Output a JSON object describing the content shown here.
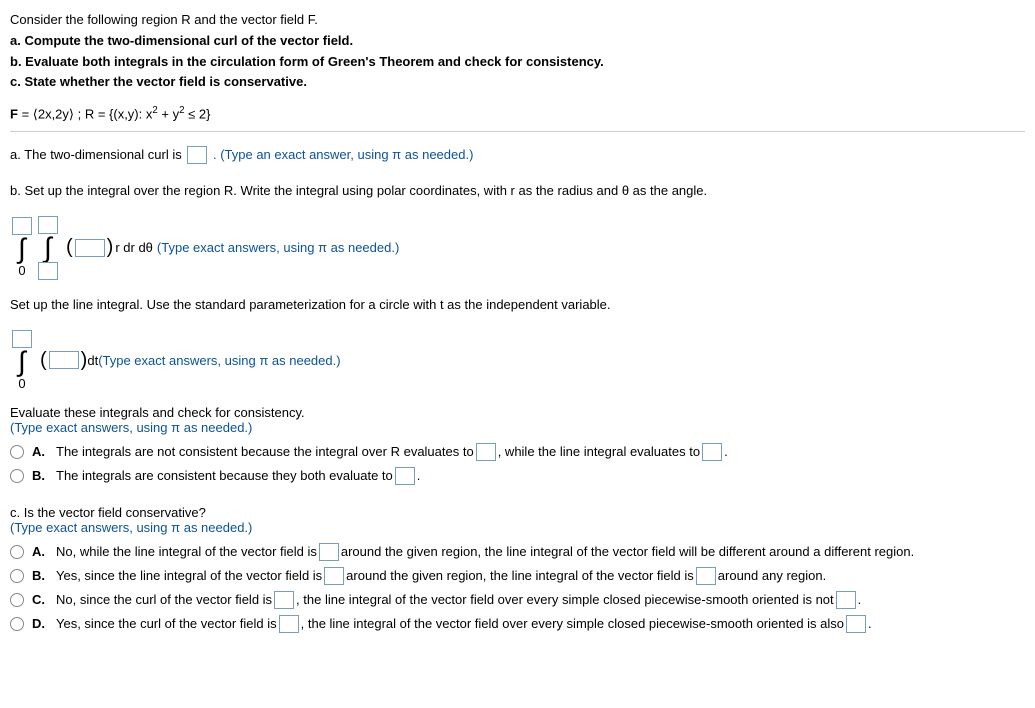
{
  "intro": "Consider the following region R and the vector field F.",
  "parts": {
    "a": "a. Compute the two-dimensional curl of the vector field.",
    "b": "b. Evaluate both integrals in the circulation form of Green's Theorem and check for consistency.",
    "c": "c. State whether the vector field is conservative."
  },
  "equation_html": "<b>F</b> = ⟨2x,2y⟩ ; R = {(x,y): x<sup>2</sup> + y<sup>2</sup> ≤ 2}",
  "partA_pre": "a. The two-dimensional curl is ",
  "partA_post": ". (Type an exact answer, using π as needed.)",
  "partB_setup": "b. Set up the integral over the region R. Write the integral using polar coordinates, with r as the radius and θ as the angle.",
  "double_int": {
    "integrand_after": "r dr dθ",
    "hint": "(Type exact answers, using π as needed.)",
    "lower1": "0"
  },
  "line_int_setup": "Set up the line integral. Use the standard parameterization for a circle with t as the independent variable.",
  "line_int": {
    "after": " dt ",
    "hint": "(Type exact answers, using π as needed.)",
    "lower": "0"
  },
  "eval_text1": "Evaluate these integrals and check for consistency.",
  "eval_hint": "(Type exact answers, using π as needed.)",
  "optA1": "The integrals are not consistent because the integral over R evaluates to ",
  "optA2": ", while the line integral evaluates to ",
  "optB1": "The integrals are consistent because they both evaluate to ",
  "partC_q": "c. Is the vector field conservative?",
  "partC_hint": "(Type exact answers, using π as needed.)",
  "cA1": "No, while the line integral of the vector field is ",
  "cA2": " around the given region, the line integral of the vector field will be different around a different region.",
  "cB1": "Yes, since the line integral of the vector field is ",
  "cB2": " around the given region, the line integral of the vector field is ",
  "cB3": " around any region.",
  "cC1": "No, since the curl of the vector field is ",
  "cC2": ", the line integral of the vector field over every simple closed piecewise-smooth oriented is not ",
  "cD1": "Yes, since the curl of the vector field is ",
  "cD2": ", the line integral of the vector field over every simple closed piecewise-smooth oriented is also ",
  "labels": {
    "A": "A.",
    "B": "B.",
    "C": "C.",
    "D": "D."
  },
  "period": "."
}
